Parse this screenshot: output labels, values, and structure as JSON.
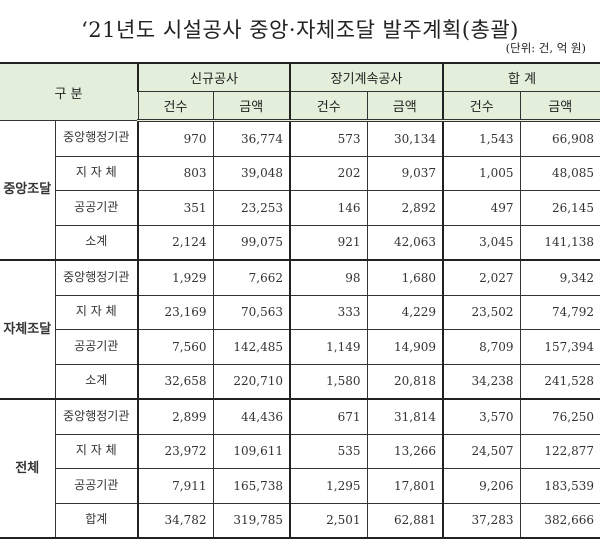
{
  "title": "‘21년도 시설공사 중앙·자체조달 발주계획(총괄)",
  "unit": "(단위: 건, 억 원)",
  "header": {
    "category": "구 분",
    "groups": [
      "신규공사",
      "장기계속공사",
      "합 계"
    ],
    "subcols": [
      "건수",
      "금액",
      "건수",
      "금액",
      "건수",
      "금액"
    ]
  },
  "sections": [
    {
      "label": "중앙조달",
      "rows": [
        {
          "label": "중앙행정기관",
          "values": [
            "970",
            "36,774",
            "573",
            "30,134",
            "1,543",
            "66,908"
          ]
        },
        {
          "label": "지 자 체",
          "values": [
            "803",
            "39,048",
            "202",
            "9,037",
            "1,005",
            "48,085"
          ]
        },
        {
          "label": "공공기관",
          "values": [
            "351",
            "23,253",
            "146",
            "2,892",
            "497",
            "26,145"
          ]
        },
        {
          "label": "소계",
          "values": [
            "2,124",
            "99,075",
            "921",
            "42,063",
            "3,045",
            "141,138"
          ]
        }
      ]
    },
    {
      "label": "자체조달",
      "rows": [
        {
          "label": "중앙행정기관",
          "values": [
            "1,929",
            "7,662",
            "98",
            "1,680",
            "2,027",
            "9,342"
          ]
        },
        {
          "label": "지 자 체",
          "values": [
            "23,169",
            "70,563",
            "333",
            "4,229",
            "23,502",
            "74,792"
          ]
        },
        {
          "label": "공공기관",
          "values": [
            "7,560",
            "142,485",
            "1,149",
            "14,909",
            "8,709",
            "157,394"
          ]
        },
        {
          "label": "소계",
          "values": [
            "32,658",
            "220,710",
            "1,580",
            "20,818",
            "34,238",
            "241,528"
          ]
        }
      ]
    },
    {
      "label": "전체",
      "rows": [
        {
          "label": "중앙행정기관",
          "values": [
            "2,899",
            "44,436",
            "671",
            "31,814",
            "3,570",
            "76,250"
          ]
        },
        {
          "label": "지 자 체",
          "values": [
            "23,972",
            "109,611",
            "535",
            "13,266",
            "24,507",
            "122,877"
          ]
        },
        {
          "label": "공공기관",
          "values": [
            "7,911",
            "165,738",
            "1,295",
            "17,801",
            "9,206",
            "183,539"
          ]
        },
        {
          "label": "합계",
          "values": [
            "34,782",
            "319,785",
            "2,501",
            "62,881",
            "37,283",
            "382,666"
          ]
        }
      ]
    }
  ],
  "colors": {
    "header_bg": "#e3efda",
    "border": "#333333"
  }
}
